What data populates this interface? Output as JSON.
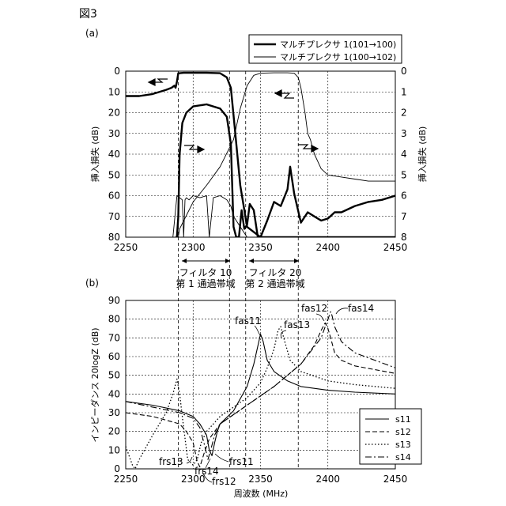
{
  "figure": {
    "title": "図3",
    "panel_a_label": "(a)",
    "panel_b_label": "(b)",
    "x_label": "周波数 (MHz)",
    "band_labels": [
      {
        "line1": "フィルタ 10",
        "line2": "第 1 通過帯域"
      },
      {
        "line1": "フィルタ 20",
        "line2": "第 2 通過帯域"
      }
    ]
  },
  "chart_data": [
    {
      "type": "line",
      "panel": "(a)",
      "xlabel": "",
      "ylabel": "挿入損失 (dB)",
      "ylabel_right": "挿入損失 (dB)",
      "xlim": [
        2250,
        2450
      ],
      "ylim": [
        80,
        0
      ],
      "ylim_right": [
        8,
        0
      ],
      "x_ticks": [
        2250,
        2300,
        2350,
        2400,
        2450
      ],
      "y_ticks": [
        0,
        10,
        20,
        30,
        40,
        50,
        60,
        70,
        80
      ],
      "y_ticks_right": [
        0,
        1,
        2,
        3,
        4,
        5,
        6,
        7,
        8
      ],
      "grid": true,
      "legend_position": "top-right",
      "series": [
        {
          "name": "マルチプレクサ 1(101→100)",
          "style": "thick",
          "axis": "left",
          "x": [
            2250,
            2260,
            2270,
            2280,
            2284,
            2286,
            2287,
            2288,
            2289,
            2290,
            2293,
            2300,
            2310,
            2320,
            2325,
            2328,
            2331,
            2335,
            2340,
            2350,
            2360,
            2370,
            2380,
            2390,
            2400,
            2410,
            2420,
            2430,
            2440,
            2450
          ],
          "y": [
            12,
            12,
            11,
            9,
            8,
            7,
            8,
            5,
            1,
            1,
            0.8,
            0.8,
            0.8,
            1,
            3,
            8,
            28,
            55,
            75,
            80,
            80,
            80,
            80,
            80,
            80,
            80,
            80,
            80,
            80,
            80
          ]
        },
        {
          "name": "マルチプレクサ 1(100→102)",
          "style": "thin",
          "axis": "left",
          "x": [
            2250,
            2260,
            2270,
            2280,
            2285,
            2288,
            2289,
            2290,
            2300,
            2310,
            2320,
            2330,
            2335,
            2340,
            2345,
            2350,
            2360,
            2370,
            2375,
            2378,
            2380,
            2383,
            2385,
            2387,
            2390,
            2395,
            2400,
            2410,
            2420,
            2430,
            2440,
            2450
          ],
          "y": [
            80,
            80,
            80,
            80,
            80,
            80,
            80,
            76,
            63,
            55,
            46,
            33,
            18,
            7,
            2,
            1,
            0.8,
            0.8,
            1,
            3,
            8,
            20,
            30,
            33,
            40,
            47,
            50,
            51,
            52,
            53,
            53,
            53
          ]
        },
        {
          "name": "マルチプレクサ 1(101→100)",
          "style": "thick",
          "axis": "right",
          "x": [
            2287,
            2288,
            2289,
            2290,
            2292,
            2295,
            2300,
            2310,
            2320,
            2325,
            2328,
            2330,
            2332,
            2334,
            2336,
            2338,
            2340,
            2342,
            2345,
            2348,
            2350,
            2355,
            2360,
            2365,
            2370,
            2372,
            2375,
            2380,
            2385,
            2390,
            2395,
            2400,
            2405,
            2410,
            2420,
            2430,
            2440,
            2450
          ],
          "y": [
            8,
            8,
            7,
            4,
            2.5,
            2,
            1.7,
            1.6,
            1.8,
            2.2,
            3.5,
            7.5,
            8,
            8,
            6.7,
            7.6,
            7.4,
            6.4,
            6.7,
            8,
            8,
            7.2,
            6.3,
            6.5,
            5.7,
            4.6,
            5.9,
            7.3,
            6.8,
            7.0,
            7.2,
            7.1,
            6.8,
            6.8,
            6.5,
            6.3,
            6.2,
            6.0
          ]
        },
        {
          "name": "マルチプレクサ 1(100→102)",
          "style": "thin",
          "axis": "right",
          "x": [
            2250,
            2255,
            2260,
            2265,
            2270,
            2275,
            2280,
            2285,
            2288,
            2290,
            2292,
            2293,
            2294,
            2295,
            2297,
            2300,
            2305,
            2310,
            2312,
            2315,
            2320,
            2325,
            2328,
            2330,
            2335,
            2340,
            2345,
            2350,
            2355,
            2360,
            2370,
            2375,
            2378,
            2380,
            2385,
            2390,
            2395,
            2400,
            2405,
            2410,
            2420,
            2430,
            2440,
            2450
          ],
          "y": [
            8,
            8,
            8,
            8,
            8,
            8,
            8,
            8,
            6,
            6.1,
            6.2,
            8,
            6.2,
            6.1,
            6.2,
            6.0,
            6.1,
            6.0,
            8,
            6.1,
            6.0,
            6.2,
            6.5,
            7.0,
            7.5,
            8,
            8,
            8,
            8,
            8,
            8,
            8,
            8,
            8,
            8,
            8,
            8,
            8,
            8,
            8,
            8,
            8,
            8,
            8
          ]
        }
      ]
    },
    {
      "type": "line",
      "panel": "(b)",
      "xlabel": "周波数 (MHz)",
      "ylabel": "インピーダンス 20logZ (dB)",
      "xlim": [
        2250,
        2450
      ],
      "ylim": [
        0,
        90
      ],
      "x_ticks": [
        2250,
        2300,
        2350,
        2400,
        2450
      ],
      "y_ticks": [
        0,
        10,
        20,
        30,
        40,
        50,
        60,
        70,
        80,
        90
      ],
      "grid": true,
      "legend_position": "bottom-right",
      "series": [
        {
          "name": "s11",
          "dash": "solid",
          "x": [
            2250,
            2270,
            2290,
            2300,
            2305,
            2310,
            2312,
            2314,
            2316,
            2318,
            2320,
            2330,
            2340,
            2345,
            2350,
            2352,
            2355,
            2360,
            2370,
            2380,
            2400,
            2420,
            2450
          ],
          "y": [
            36,
            34,
            31,
            28,
            24,
            18,
            10,
            7,
            14,
            20,
            24,
            31,
            44,
            56,
            72,
            68,
            58,
            52,
            47,
            44,
            42,
            41,
            40
          ]
        },
        {
          "name": "s12",
          "dash": "dashed",
          "x": [
            2250,
            2270,
            2290,
            2295,
            2300,
            2303,
            2305,
            2308,
            2312,
            2320,
            2340,
            2360,
            2380,
            2390,
            2395,
            2398,
            2400,
            2402,
            2405,
            2410,
            2420,
            2450
          ],
          "y": [
            30,
            28,
            24,
            20,
            14,
            4,
            1,
            8,
            16,
            24,
            34,
            44,
            56,
            66,
            74,
            78,
            75,
            70,
            62,
            58,
            55,
            51
          ]
        },
        {
          "name": "s13",
          "dash": "dotted",
          "x": [
            2250,
            2253,
            2255,
            2257,
            2260,
            2270,
            2280,
            2285,
            2288,
            2290,
            2293,
            2296,
            2300,
            2303,
            2306,
            2310,
            2320,
            2340,
            2350,
            2355,
            2360,
            2363,
            2365,
            2368,
            2372,
            2380,
            2400,
            2420,
            2450
          ],
          "y": [
            12,
            6,
            2,
            0,
            5,
            18,
            30,
            40,
            48,
            40,
            22,
            5,
            2,
            5,
            14,
            20,
            28,
            38,
            46,
            54,
            64,
            74,
            76,
            68,
            58,
            52,
            47,
            45,
            43
          ]
        },
        {
          "name": "s14",
          "dash": "dashdot",
          "x": [
            2250,
            2270,
            2290,
            2300,
            2305,
            2308,
            2310,
            2311,
            2313,
            2316,
            2320,
            2340,
            2360,
            2380,
            2395,
            2400,
            2402,
            2403,
            2405,
            2410,
            2420,
            2450
          ],
          "y": [
            36,
            33,
            30,
            27,
            22,
            14,
            8,
            5,
            10,
            18,
            24,
            34,
            44,
            56,
            70,
            80,
            84,
            82,
            76,
            68,
            62,
            54
          ]
        }
      ],
      "annotations": [
        "fas11",
        "fas12",
        "fas13",
        "fas14",
        "frs13",
        "frs14",
        "frs12",
        "frs11"
      ]
    }
  ],
  "colors": {
    "ink": "#000000",
    "paper": "#ffffff"
  }
}
